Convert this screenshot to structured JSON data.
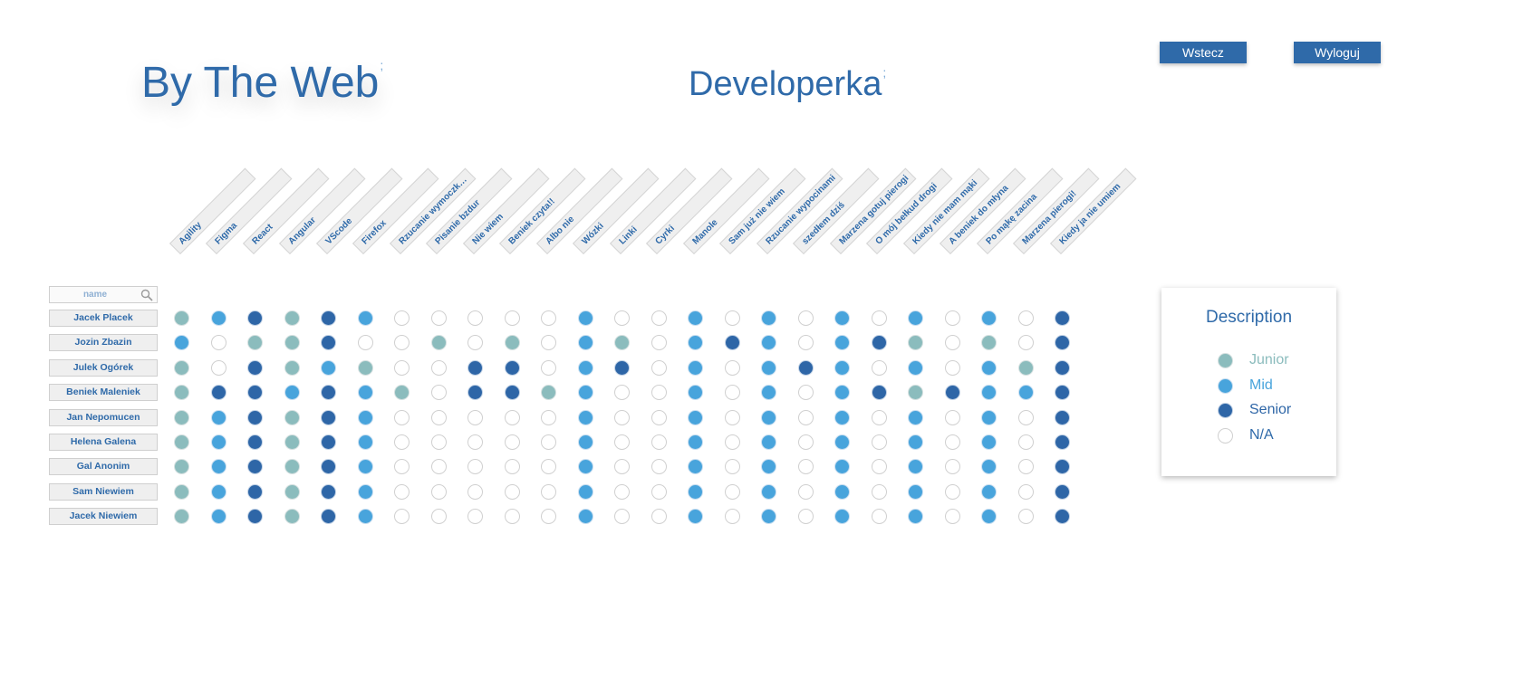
{
  "header": {
    "brand": "By The Web",
    "brand_separator": ";",
    "section_title": "Developerka",
    "section_separator": ";",
    "back_label": "Wstecz",
    "logout_label": "Wyloguj"
  },
  "search": {
    "placeholder": "name"
  },
  "skills": [
    "Agility",
    "Figma",
    "React",
    "Angular",
    "VScode",
    "Firefox",
    "Rzucanie wymoczk…",
    "Pisanie bzdur",
    "Nie wiem",
    "Beniek czyta!!",
    "Albo nie",
    "Wózki",
    "Linki",
    "Cyrki",
    "Manole",
    "Sam już nie wiem",
    "Rzucanie wypocinami",
    "szedłem dziś",
    "Marzena gotuj pierogi",
    "O mój bełkud drogi",
    "Kiedy nie mam mąki",
    "A beniek do młyna",
    "Po mąkę zacina",
    "Marzena pierogi!",
    "Kiedy ja nie umiem"
  ],
  "people": [
    {
      "name": "Jacek Placek",
      "levels": [
        "J",
        "M",
        "S",
        "J",
        "S",
        "M",
        "N",
        "N",
        "N",
        "N",
        "N",
        "M",
        "N",
        "N",
        "M",
        "N",
        "M",
        "N",
        "M",
        "N",
        "M",
        "N",
        "M",
        "N",
        "S"
      ]
    },
    {
      "name": "Jozin Zbazin",
      "levels": [
        "M",
        "N",
        "J",
        "J",
        "S",
        "N",
        "N",
        "J",
        "N",
        "J",
        "N",
        "M",
        "J",
        "N",
        "M",
        "S",
        "M",
        "N",
        "M",
        "S",
        "J",
        "N",
        "J",
        "N",
        "S"
      ]
    },
    {
      "name": "Julek Ogórek",
      "levels": [
        "J",
        "N",
        "S",
        "J",
        "M",
        "J",
        "N",
        "N",
        "S",
        "S",
        "N",
        "M",
        "S",
        "N",
        "M",
        "N",
        "M",
        "S",
        "M",
        "N",
        "M",
        "N",
        "M",
        "J",
        "S"
      ]
    },
    {
      "name": "Beniek Maleniek",
      "levels": [
        "J",
        "S",
        "S",
        "M",
        "S",
        "M",
        "J",
        "N",
        "S",
        "S",
        "J",
        "M",
        "N",
        "N",
        "M",
        "N",
        "M",
        "N",
        "M",
        "S",
        "J",
        "S",
        "M",
        "M",
        "S"
      ]
    },
    {
      "name": "Jan Nepomucen",
      "levels": [
        "J",
        "M",
        "S",
        "J",
        "S",
        "M",
        "N",
        "N",
        "N",
        "N",
        "N",
        "M",
        "N",
        "N",
        "M",
        "N",
        "M",
        "N",
        "M",
        "N",
        "M",
        "N",
        "M",
        "N",
        "S"
      ]
    },
    {
      "name": "Helena Galena",
      "levels": [
        "J",
        "M",
        "S",
        "J",
        "S",
        "M",
        "N",
        "N",
        "N",
        "N",
        "N",
        "M",
        "N",
        "N",
        "M",
        "N",
        "M",
        "N",
        "M",
        "N",
        "M",
        "N",
        "M",
        "N",
        "S"
      ]
    },
    {
      "name": "Gal Anonim",
      "levels": [
        "J",
        "M",
        "S",
        "J",
        "S",
        "M",
        "N",
        "N",
        "N",
        "N",
        "N",
        "M",
        "N",
        "N",
        "M",
        "N",
        "M",
        "N",
        "M",
        "N",
        "M",
        "N",
        "M",
        "N",
        "S"
      ]
    },
    {
      "name": "Sam Niewiem",
      "levels": [
        "J",
        "M",
        "S",
        "J",
        "S",
        "M",
        "N",
        "N",
        "N",
        "N",
        "N",
        "M",
        "N",
        "N",
        "M",
        "N",
        "M",
        "N",
        "M",
        "N",
        "M",
        "N",
        "M",
        "N",
        "S"
      ]
    },
    {
      "name": "Jacek Niewiem",
      "levels": [
        "J",
        "M",
        "S",
        "J",
        "S",
        "M",
        "N",
        "N",
        "N",
        "N",
        "N",
        "M",
        "N",
        "N",
        "M",
        "N",
        "M",
        "N",
        "M",
        "N",
        "M",
        "N",
        "M",
        "N",
        "S"
      ]
    }
  ],
  "legend": {
    "title": "Description",
    "items": [
      {
        "code": "J",
        "label": "Junior",
        "color": "#8bbcbd"
      },
      {
        "code": "M",
        "label": "Mid",
        "color": "#48a4dc"
      },
      {
        "code": "S",
        "label": "Senior",
        "color": "#2e66a7"
      },
      {
        "code": "N",
        "label": "N/A",
        "color": "#2f6aa9"
      }
    ]
  }
}
